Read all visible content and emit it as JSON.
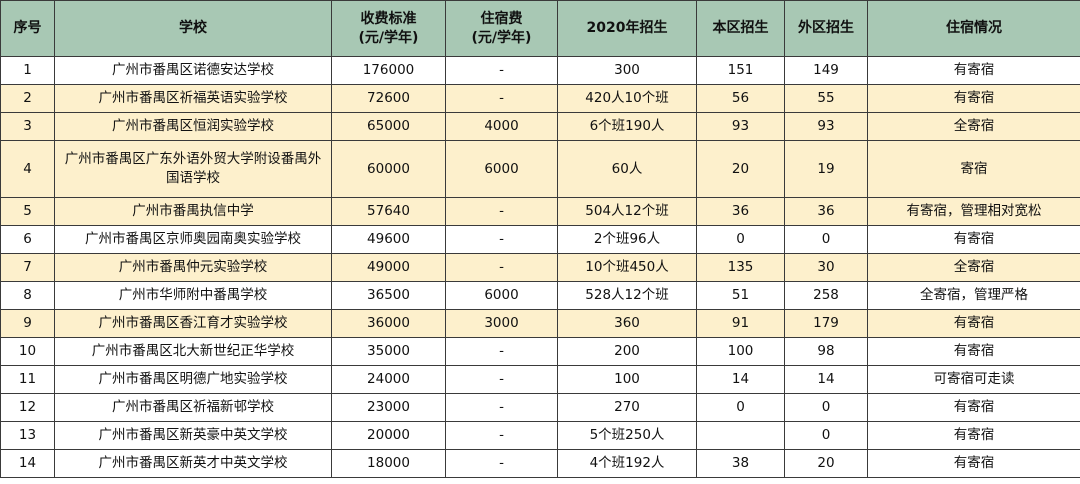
{
  "headers": {
    "seq": "序号",
    "school": "学校",
    "fee_line1": "收费标准",
    "fee_line2": "(元/学年)",
    "board_line1": "住宿费",
    "board_line2": "(元/学年)",
    "enroll2020": "2020年招生",
    "local": "本区招生",
    "external": "外区招生",
    "dorm": "住宿情况"
  },
  "rows": [
    {
      "seq": "1",
      "school": "广州市番禺区诺德安达学校",
      "fee": "176000",
      "board": "-",
      "enroll": "300",
      "local": "151",
      "external": "149",
      "dorm": "有寄宿"
    },
    {
      "seq": "2",
      "school": "广州市番禺区祈福英语实验学校",
      "fee": "72600",
      "board": "-",
      "enroll": "420人10个班",
      "local": "56",
      "external": "55",
      "dorm": "有寄宿"
    },
    {
      "seq": "3",
      "school": "广州市番禺区恒润实验学校",
      "fee": "65000",
      "board": "4000",
      "enroll": "6个班190人",
      "local": "93",
      "external": "93",
      "dorm": "全寄宿"
    },
    {
      "seq": "4",
      "school": "广州市番禺区广东外语外贸大学附设番禺外国语学校",
      "fee": "60000",
      "board": "6000",
      "enroll": "60人",
      "local": "20",
      "external": "19",
      "dorm": "寄宿"
    },
    {
      "seq": "5",
      "school": "广州市番禺执信中学",
      "fee": "57640",
      "board": "-",
      "enroll": "504人12个班",
      "local": "36",
      "external": "36",
      "dorm": "有寄宿，管理相对宽松"
    },
    {
      "seq": "6",
      "school": "广州市番禺区京师奥园南奥实验学校",
      "fee": "49600",
      "board": "-",
      "enroll": "2个班96人",
      "local": "0",
      "external": "0",
      "dorm": "有寄宿"
    },
    {
      "seq": "7",
      "school": "广州市番禺仲元实验学校",
      "fee": "49000",
      "board": "-",
      "enroll": "10个班450人",
      "local": "135",
      "external": "30",
      "dorm": "全寄宿"
    },
    {
      "seq": "8",
      "school": "广州市华师附中番禺学校",
      "fee": "36500",
      "board": "6000",
      "enroll": "528人12个班",
      "local": "51",
      "external": "258",
      "dorm": "全寄宿，管理严格"
    },
    {
      "seq": "9",
      "school": "广州市番禺区香江育才实验学校",
      "fee": "36000",
      "board": "3000",
      "enroll": "360",
      "local": "91",
      "external": "179",
      "dorm": "有寄宿"
    },
    {
      "seq": "10",
      "school": "广州市番禺区北大新世纪正华学校",
      "fee": "35000",
      "board": "-",
      "enroll": "200",
      "local": "100",
      "external": "98",
      "dorm": "有寄宿"
    },
    {
      "seq": "11",
      "school": "广州市番禺区明德广地实验学校",
      "fee": "24000",
      "board": "-",
      "enroll": "100",
      "local": "14",
      "external": "14",
      "dorm": "可寄宿可走读"
    },
    {
      "seq": "12",
      "school": "广州市番禺区祈福新邨学校",
      "fee": "23000",
      "board": "-",
      "enroll": "270",
      "local": "0",
      "external": "0",
      "dorm": "有寄宿"
    },
    {
      "seq": "13",
      "school": "广州市番禺区新英豪中英文学校",
      "fee": "20000",
      "board": "-",
      "enroll": "5个班250人",
      "local": "",
      "external": "0",
      "dorm": "有寄宿"
    },
    {
      "seq": "14",
      "school": "广州市番禺区新英才中英文学校",
      "fee": "18000",
      "board": "-",
      "enroll": "4个班192人",
      "local": "38",
      "external": "20",
      "dorm": "有寄宿"
    }
  ]
}
